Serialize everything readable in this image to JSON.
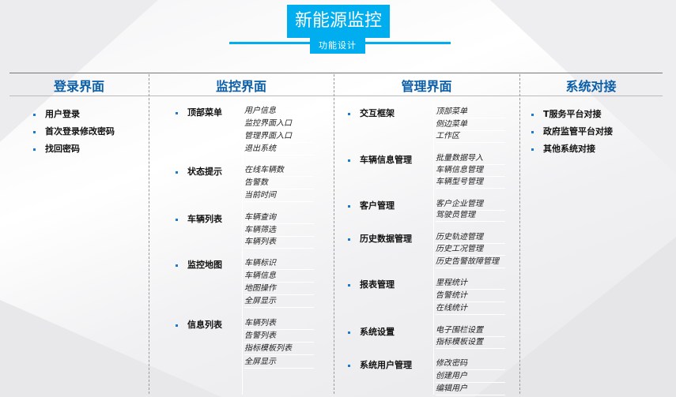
{
  "header": {
    "title": "新能源监控",
    "subtitle": "功能设计"
  },
  "accent": "#00aeef",
  "heading_color": "#0b5fa8",
  "columns": [
    {
      "title": "登录界面",
      "items": [
        {
          "label": "用户登录",
          "subs": []
        },
        {
          "label": "首次登录修改密码",
          "subs": []
        },
        {
          "label": "找回密码",
          "subs": []
        }
      ]
    },
    {
      "title": "监控界面",
      "items": [
        {
          "label": "顶部菜单",
          "subs": [
            "用户信息",
            "监控界面入口",
            "管理界面入口",
            "退出系统"
          ]
        },
        {
          "label": "状态提示",
          "subs": [
            "在线车辆数",
            "告警数",
            "当前时间"
          ]
        },
        {
          "label": "车辆列表",
          "subs": [
            "车辆查询",
            "车辆筛选",
            "车辆列表"
          ]
        },
        {
          "label": "监控地图",
          "subs": [
            "车辆标识",
            "车辆信息",
            "地图操作",
            "全屏显示"
          ]
        },
        {
          "label": "信息列表",
          "subs": [
            "车辆列表",
            "告警列表",
            "指标模板列表",
            "全屏显示"
          ]
        }
      ]
    },
    {
      "title": "管理界面",
      "items": [
        {
          "label": "交互框架",
          "subs": [
            "顶部菜单",
            "侧边菜单",
            "工作区"
          ]
        },
        {
          "label": "车辆信息管理",
          "subs": [
            "批量数据导入",
            "车辆信息管理",
            "车辆型号管理"
          ]
        },
        {
          "label": "客户管理",
          "subs": [
            "客户企业管理",
            "驾驶员管理"
          ]
        },
        {
          "label": "历史数据管理",
          "subs": [
            "历史轨迹管理",
            "历史工况管理",
            "历史告警故障管理"
          ]
        },
        {
          "label": "报表管理",
          "subs": [
            "里程统计",
            "告警统计",
            "在线统计"
          ]
        },
        {
          "label": "系统设置",
          "subs": [
            "电子围栏设置",
            "指标模板设置"
          ]
        },
        {
          "label": "系统用户管理",
          "subs": [
            "修改密码",
            "创建用户",
            "编辑用户"
          ]
        }
      ]
    },
    {
      "title": "系统对接",
      "items": [
        {
          "label": "T服务平台对接",
          "subs": []
        },
        {
          "label": "政府监管平台对接",
          "subs": []
        },
        {
          "label": "其他系统对接",
          "subs": []
        }
      ]
    }
  ]
}
